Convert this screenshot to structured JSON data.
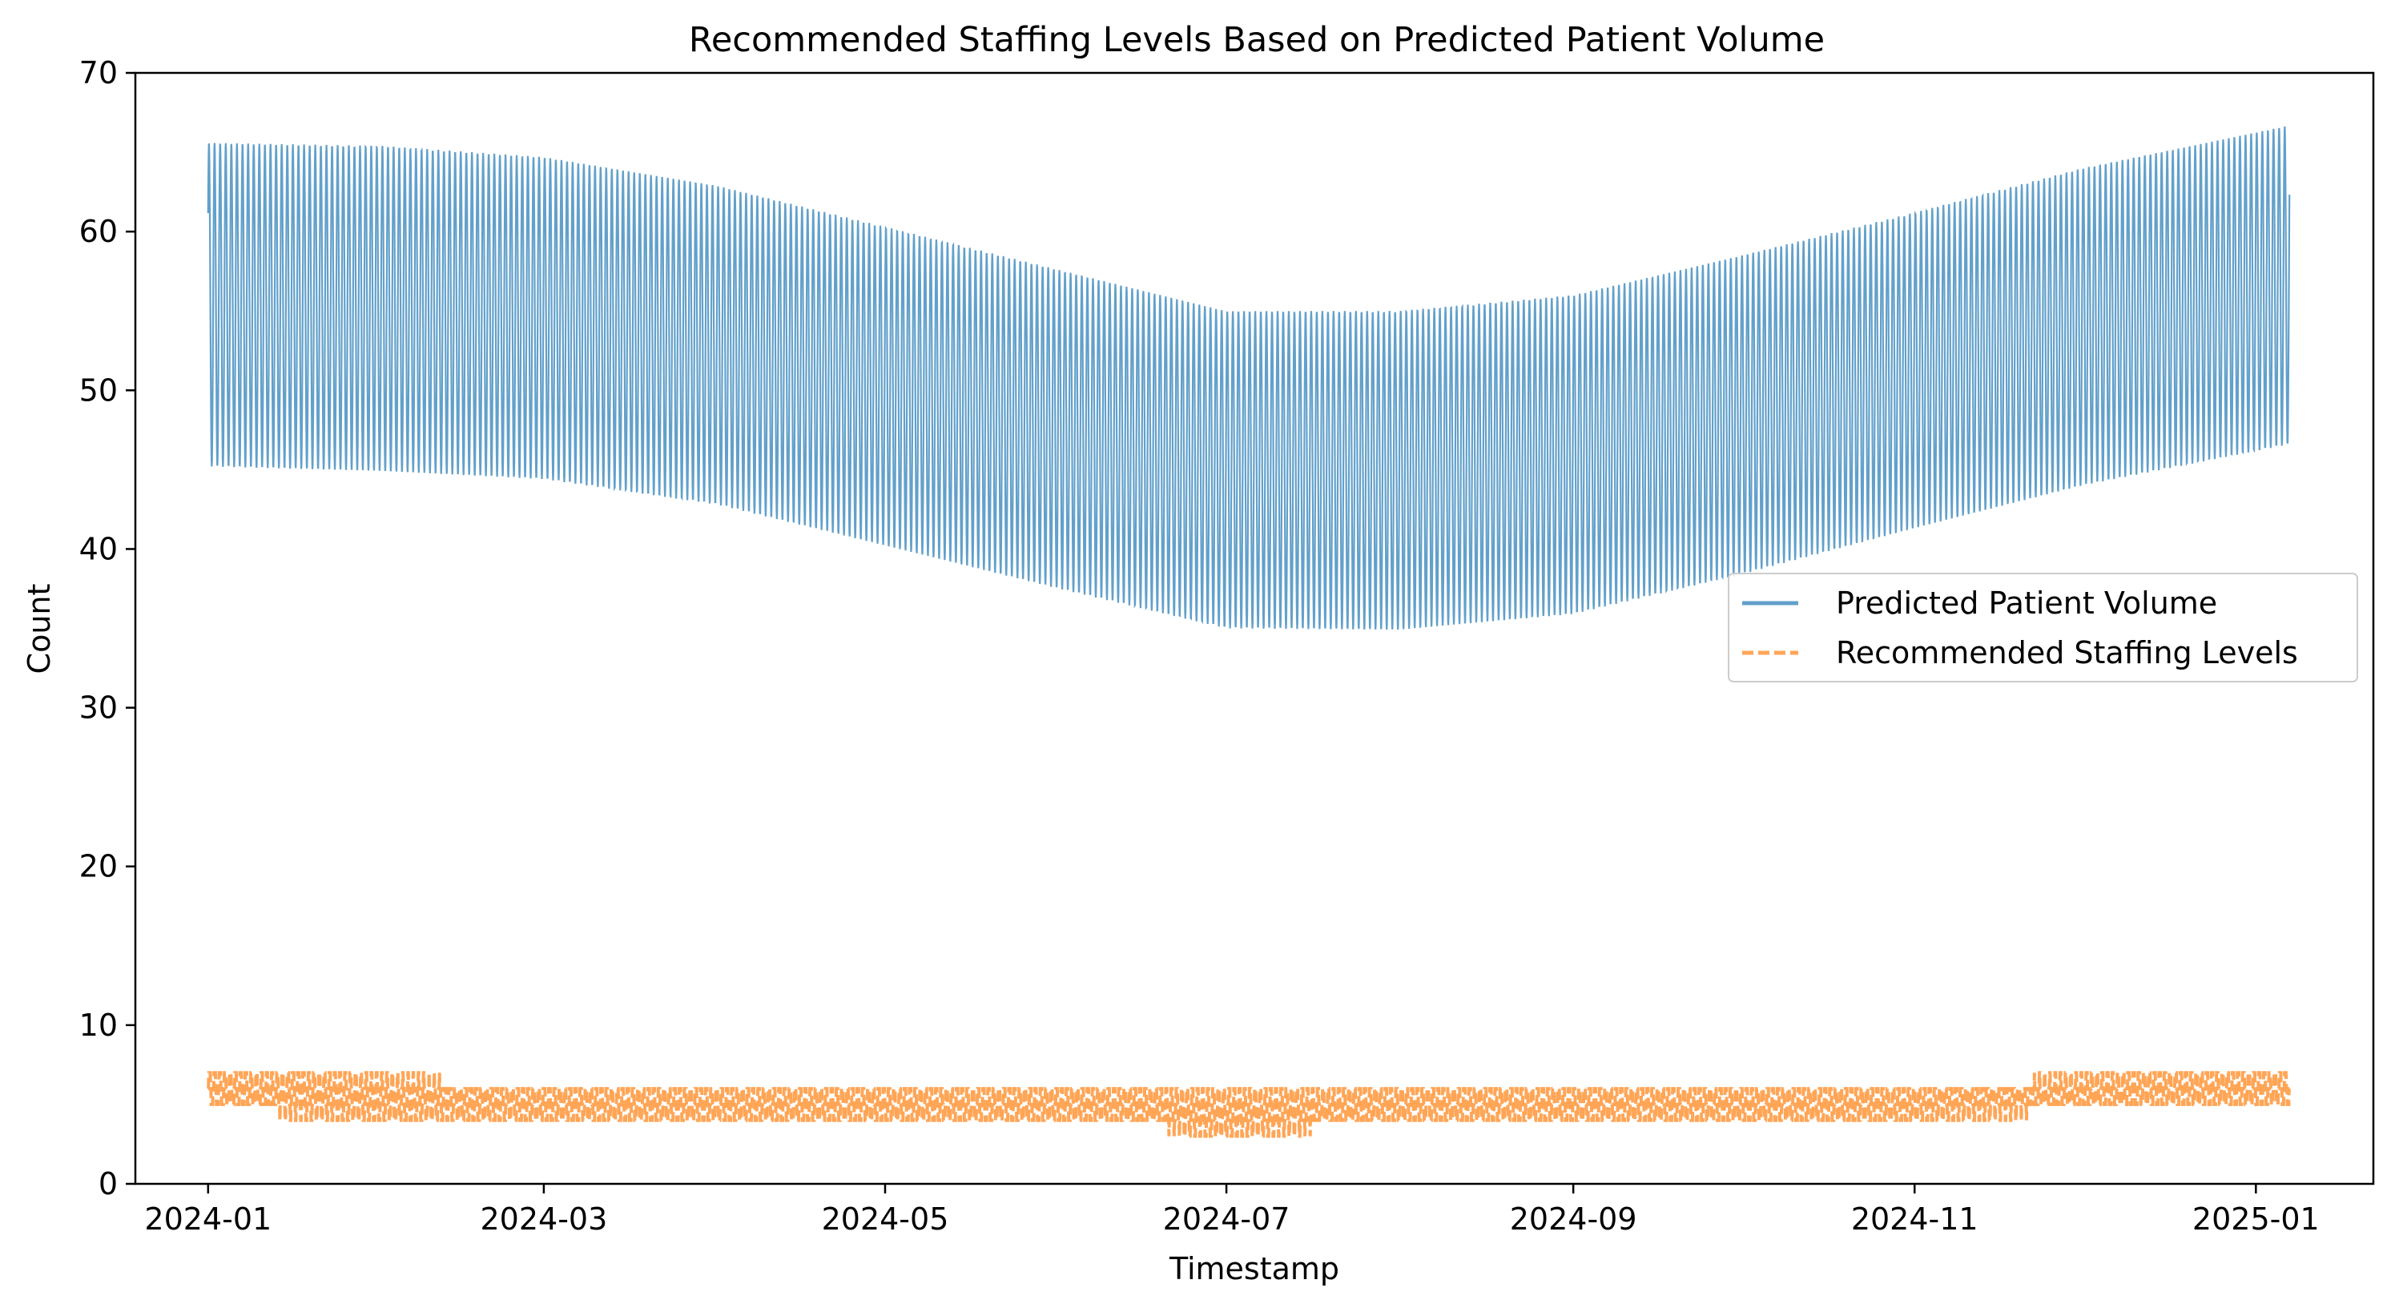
{
  "chart_data": {
    "type": "line",
    "title": "Recommended Staffing Levels Based on Predicted Patient Volume",
    "xlabel": "Timestamp",
    "ylabel": "Count",
    "x_range": [
      "2023-12-19",
      "2025-01-22"
    ],
    "xlim": [
      -13,
      387
    ],
    "ylim": [
      0,
      70
    ],
    "x_ticks": [
      "2024-01",
      "2024-03",
      "2024-05",
      "2024-07",
      "2024-09",
      "2024-11",
      "2025-01"
    ],
    "y_ticks": [
      0,
      10,
      20,
      30,
      40,
      50,
      60,
      70
    ],
    "grid": false,
    "legend_position": "center-right",
    "series": [
      {
        "name": "Predicted Patient Volume",
        "style": "solid",
        "color": "#1f77b4",
        "alpha": 0.7,
        "sampling": "hourly",
        "x_start": "2024-01-01",
        "x_end": "2025-01-07",
        "envelope": {
          "upper": [
            65.6,
            65.4,
            64.7,
            62.9,
            60.3,
            57.6,
            55.0,
            55.0,
            56.0,
            58.5,
            61.2,
            64.0,
            66.7
          ],
          "lower": [
            45.2,
            44.9,
            44.4,
            42.8,
            40.2,
            37.5,
            35.0,
            34.9,
            35.9,
            38.4,
            41.3,
            44.0,
            46.6
          ],
          "at_dates": [
            "2024-01-01",
            "2024-02-01",
            "2024-03-01",
            "2024-04-01",
            "2024-05-01",
            "2024-06-01",
            "2024-07-01",
            "2024-08-01",
            "2024-09-01",
            "2024-10-01",
            "2024-11-01",
            "2024-12-01",
            "2025-01-07"
          ]
        }
      },
      {
        "name": "Recommended Staffing Levels",
        "style": "dashed",
        "color": "#ff7f0e",
        "alpha": 0.7,
        "sampling": "hourly",
        "x_start": "2024-01-01",
        "x_end": "2025-01-07",
        "envelope": {
          "upper": [
            7,
            7,
            6,
            6,
            6,
            6,
            6,
            6,
            6,
            6,
            6,
            7,
            7
          ],
          "lower": [
            5,
            4,
            4,
            4,
            4,
            4,
            3,
            4,
            4,
            4,
            4,
            5,
            5
          ],
          "at_dates": [
            "2024-01-01",
            "2024-01-25",
            "2024-03-01",
            "2024-04-01",
            "2024-05-01",
            "2024-06-10",
            "2024-07-01",
            "2024-08-01",
            "2024-09-01",
            "2024-10-01",
            "2024-11-01",
            "2024-12-12",
            "2025-01-07"
          ]
        }
      }
    ]
  }
}
